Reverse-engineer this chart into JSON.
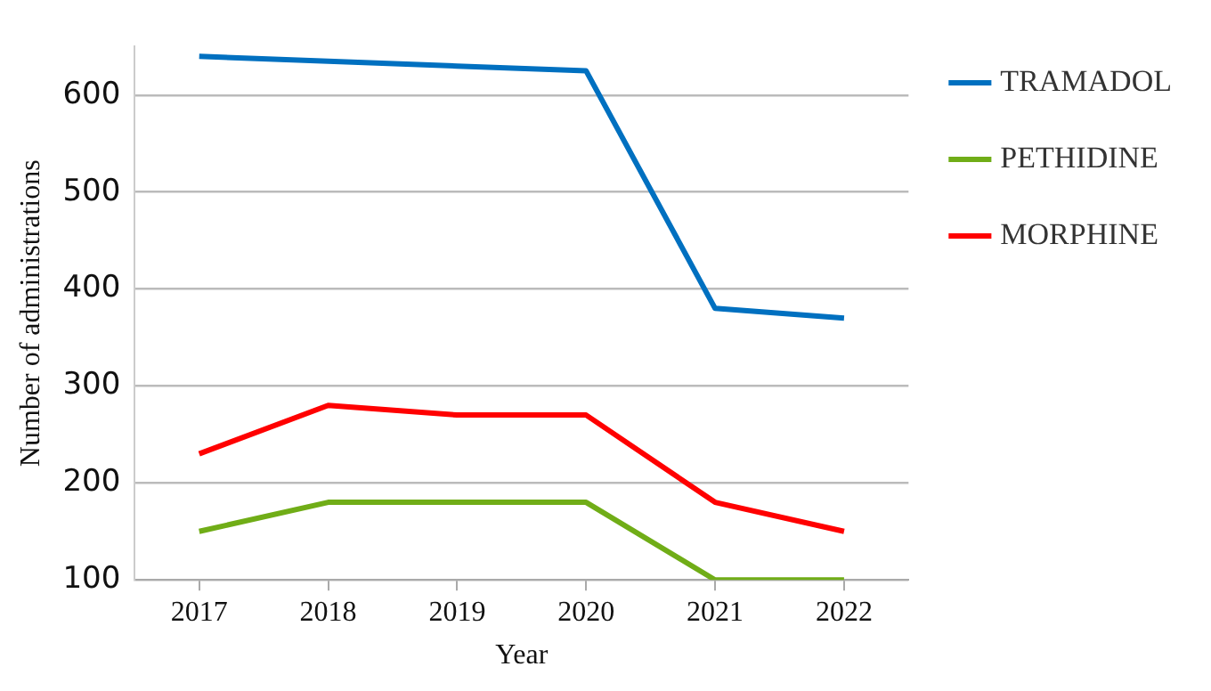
{
  "chart_data": {
    "type": "line",
    "xlabel": "Year",
    "ylabel": "Number of administrations",
    "categories": [
      "2017",
      "2018",
      "2019",
      "2020",
      "2021",
      "2022"
    ],
    "series": [
      {
        "name": "TRAMADOL",
        "color": "#0070c0",
        "values": [
          640,
          635,
          630,
          625,
          380,
          370
        ]
      },
      {
        "name": "PETHIDINE",
        "color": "#70ad17",
        "values": [
          150,
          180,
          180,
          180,
          100,
          100
        ]
      },
      {
        "name": "MORPHINE",
        "color": "#ff0000",
        "values": [
          230,
          280,
          270,
          270,
          180,
          150
        ]
      }
    ],
    "ylim": [
      100,
      650
    ],
    "yticks": [
      100,
      200,
      300,
      400,
      500,
      600
    ],
    "grid": "y",
    "legend": "right",
    "marker": "none",
    "line_style": "solid"
  }
}
